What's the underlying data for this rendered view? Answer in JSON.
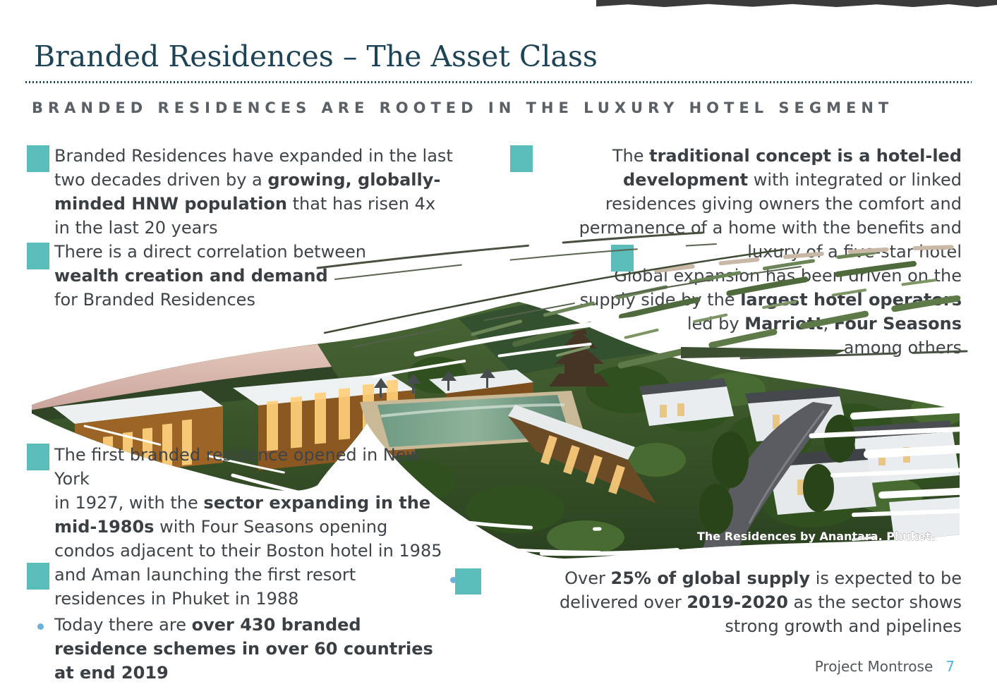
{
  "colors": {
    "accent_teal": "#5abdba",
    "title_navy": "#1d4356",
    "body_text": "#3f4449",
    "subtitle_gray": "#5a6065",
    "page_number_blue": "#4fb3d9",
    "top_bar": "#3b3b3b"
  },
  "header": {
    "title": "Branded Residences – The Asset Class",
    "subtitle": "BRANDED RESIDENCES ARE ROOTED IN THE LUXURY HOTEL SEGMENT"
  },
  "bullets": {
    "left_top": [
      [
        {
          "t": "Branded Residences have expanded in the last",
          "b": false
        }
      ],
      [
        {
          "t": "two decades driven by a ",
          "b": false
        },
        {
          "t": "growing, globally-",
          "b": true
        }
      ],
      [
        {
          "t": "minded HNW population",
          "b": true
        },
        {
          "t": " that has risen 4x",
          "b": false
        }
      ],
      [
        {
          "t": "in the last 20 years",
          "b": false
        }
      ],
      [
        {
          "t": "There is a direct correlation between",
          "b": false
        }
      ],
      [
        {
          "t": "wealth creation and demand",
          "b": true
        }
      ],
      [
        {
          "t": "for Branded Residences",
          "b": false
        }
      ]
    ],
    "right_top": [
      [
        {
          "t": "The ",
          "b": false
        },
        {
          "t": "traditional concept is a hotel-led",
          "b": true
        }
      ],
      [
        {
          "t": "development",
          "b": true
        },
        {
          "t": " with integrated or linked",
          "b": false
        }
      ],
      [
        {
          "t": "residences giving owners the comfort and",
          "b": false
        }
      ],
      [
        {
          "t": "permanence of a home with the benefits and",
          "b": false
        }
      ],
      [
        {
          "t": "luxury of a five-star hotel",
          "b": false
        }
      ],
      [
        {
          "t": "Global expansion has been driven on the",
          "b": false
        }
      ],
      [
        {
          "t": "supply side by the ",
          "b": false
        },
        {
          "t": "largest hotel operators",
          "b": true
        }
      ],
      [
        {
          "t": "led by ",
          "b": false
        },
        {
          "t": "Marriott",
          "b": true
        },
        {
          "t": ", ",
          "b": false
        },
        {
          "t": "Four Seasons",
          "b": true
        }
      ],
      [
        {
          "t": "among others",
          "b": false
        }
      ]
    ],
    "bottom_left_1": [
      [
        {
          "t": "The first branded residence opened in New",
          "b": false
        }
      ],
      [
        {
          "t": "York",
          "b": false
        }
      ],
      [
        {
          "t": "in 1927, with the ",
          "b": false
        },
        {
          "t": "sector expanding in the",
          "b": true
        }
      ],
      [
        {
          "t": "mid-1980s",
          "b": true
        },
        {
          "t": " with Four Seasons opening",
          "b": false
        }
      ],
      [
        {
          "t": "condos adjacent to their Boston hotel in 1985",
          "b": false
        }
      ],
      [
        {
          "t": "and Aman launching the first resort",
          "b": false
        }
      ],
      [
        {
          "t": "residences in Phuket in 1988",
          "b": false
        }
      ]
    ],
    "bottom_left_2": [
      [
        {
          "t": "Today there are ",
          "b": false
        },
        {
          "t": "over 430 branded",
          "b": true
        }
      ],
      [
        {
          "t": "residence schemes in over 60 countries",
          "b": true
        }
      ],
      [
        {
          "t": "at end 2019",
          "b": true
        }
      ]
    ],
    "bottom_right": [
      [
        {
          "t": "Over ",
          "b": false
        },
        {
          "t": "25% of global supply",
          "b": true
        },
        {
          "t": " is expected to be",
          "b": false
        }
      ],
      [
        {
          "t": "delivered over ",
          "b": false
        },
        {
          "t": "2019-2020",
          "b": true
        },
        {
          "t": " as the sector shows",
          "b": false
        }
      ],
      [
        {
          "t": "strong growth and pipelines",
          "b": false
        }
      ]
    ]
  },
  "image": {
    "caption": "The Residences by Anantara. Phuket."
  },
  "footer": {
    "project": "Project Montrose",
    "page": "7"
  }
}
